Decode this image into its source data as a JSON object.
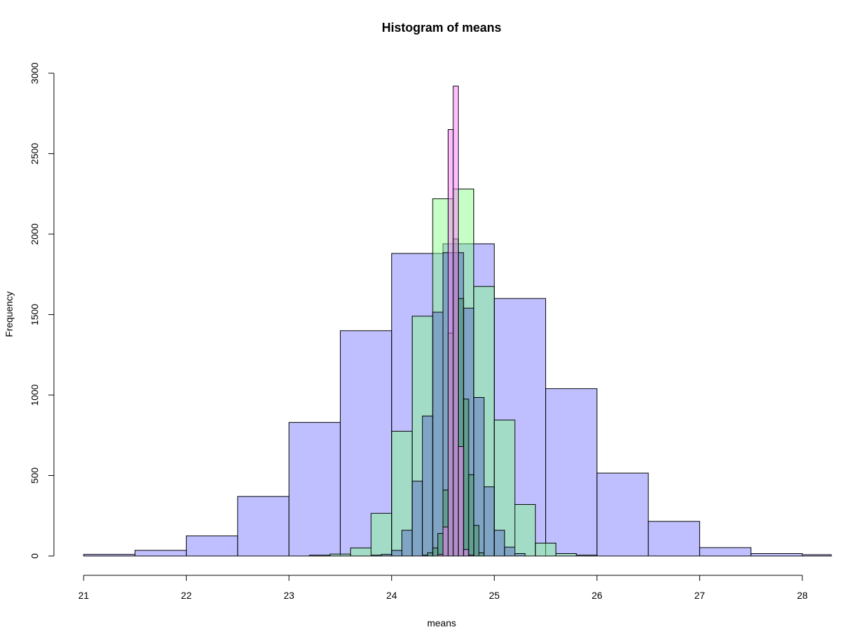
{
  "chart_data": {
    "type": "bar",
    "title": "Histogram of means",
    "xlabel": "means",
    "ylabel": "Frequency",
    "xlim": [
      21,
      28.28
    ],
    "ylim": [
      0,
      3000
    ],
    "x_ticks": [
      21,
      22,
      23,
      24,
      25,
      26,
      27,
      28
    ],
    "y_ticks": [
      0,
      500,
      1000,
      1500,
      2000,
      2500,
      3000
    ],
    "grid": false,
    "series": [
      {
        "color": "#8080ff",
        "opacity": 0.5,
        "bin_edges": [
          21,
          21.5,
          22,
          22.5,
          23,
          23.5,
          24,
          24.5,
          25,
          25.5,
          26,
          26.5,
          27,
          27.5,
          28,
          28.5
        ],
        "counts": [
          10,
          35,
          125,
          370,
          830,
          1400,
          1880,
          1940,
          1600,
          1040,
          515,
          215,
          52,
          15,
          8
        ]
      },
      {
        "color": "#80ff80",
        "opacity": 0.45,
        "bin_edges": [
          23.2,
          23.4,
          23.6,
          23.8,
          24.0,
          24.2,
          24.4,
          24.6,
          24.8,
          25.0,
          25.2,
          25.4,
          25.6,
          25.8,
          26.0
        ],
        "counts": [
          5,
          12,
          50,
          265,
          775,
          1490,
          2220,
          2280,
          1675,
          845,
          320,
          80,
          15,
          5
        ]
      },
      {
        "color": "#4040c0",
        "opacity": 0.35,
        "bin_edges": [
          23.8,
          23.9,
          24.0,
          24.1,
          24.2,
          24.3,
          24.4,
          24.5,
          24.6,
          24.7,
          24.8,
          24.9,
          25.0,
          25.1,
          25.2,
          25.3
        ],
        "counts": [
          5,
          10,
          35,
          160,
          465,
          870,
          1515,
          1885,
          1885,
          1540,
          985,
          430,
          160,
          55,
          15
        ]
      },
      {
        "color": "#209020",
        "opacity": 0.3,
        "bin_edges": [
          24.3,
          24.35,
          24.4,
          24.45,
          24.5,
          24.55,
          24.6,
          24.65,
          24.7,
          24.75,
          24.8,
          24.85,
          24.9
        ],
        "counts": [
          5,
          20,
          50,
          140,
          410,
          1385,
          1970,
          1600,
          975,
          505,
          190,
          20
        ]
      },
      {
        "color": "#ff80ff",
        "opacity": 0.5,
        "bin_edges": [
          24.45,
          24.5,
          24.55,
          24.6,
          24.65,
          24.7,
          24.75,
          24.8
        ],
        "counts": [
          10,
          180,
          2650,
          2920,
          680,
          40,
          5
        ]
      }
    ]
  }
}
